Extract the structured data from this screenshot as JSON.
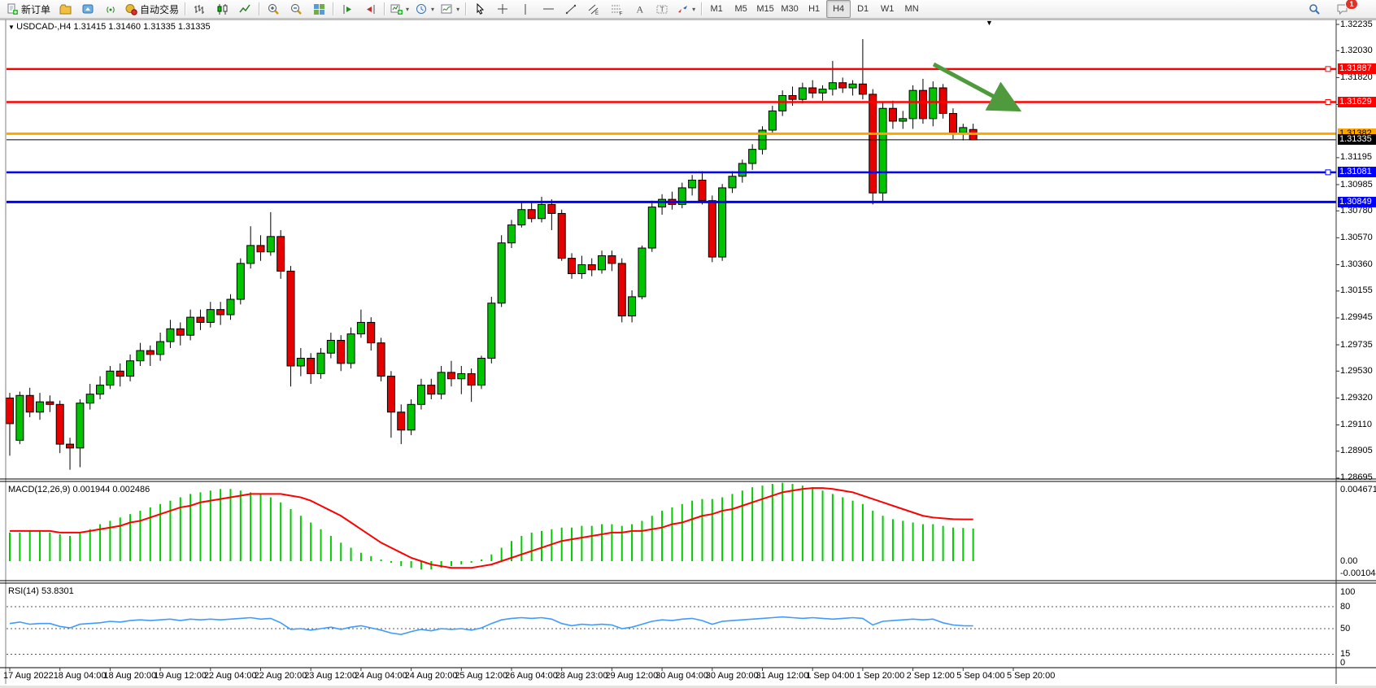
{
  "toolbar": {
    "new_order_label": "新订单",
    "auto_trading_label": "自动交易",
    "timeframes": [
      "M1",
      "M5",
      "M15",
      "M30",
      "H1",
      "H4",
      "D1",
      "W1",
      "MN"
    ],
    "active_timeframe": "H4",
    "notification_count": "1",
    "icon_buttons": [
      {
        "name": "new-order-button",
        "icon": "page-plus",
        "label": "新订单"
      },
      {
        "name": "charts-profile-button",
        "icon": "profile"
      },
      {
        "name": "publish-button",
        "icon": "publish"
      },
      {
        "name": "signals-button",
        "icon": "signal"
      },
      {
        "name": "auto-trading-button",
        "icon": "autotrade",
        "label": "自动交易"
      },
      {
        "sep": true
      },
      {
        "name": "bar-chart-button",
        "icon": "bars"
      },
      {
        "name": "candlestick-button",
        "icon": "candles"
      },
      {
        "name": "line-chart-button",
        "icon": "line-chart"
      },
      {
        "sep": true
      },
      {
        "name": "zoom-in-button",
        "icon": "zoom-in"
      },
      {
        "name": "zoom-out-button",
        "icon": "zoom-out"
      },
      {
        "name": "tile-windows-button",
        "icon": "tiles"
      },
      {
        "sep": true
      },
      {
        "name": "auto-scroll-button",
        "icon": "auto-scroll"
      },
      {
        "name": "chart-shift-button",
        "icon": "chart-shift"
      },
      {
        "sep": true
      },
      {
        "name": "new-chart-dropdown",
        "icon": "new-chart",
        "caret": true
      },
      {
        "name": "periods-dropdown",
        "icon": "clock",
        "caret": true
      },
      {
        "name": "indicators-dropdown",
        "icon": "indicators",
        "caret": true
      },
      {
        "sep": true
      },
      {
        "name": "cursor-button",
        "icon": "cursor"
      },
      {
        "name": "crosshair-button",
        "icon": "crosshair"
      },
      {
        "name": "vertical-line-button",
        "icon": "vline"
      },
      {
        "name": "horizontal-line-button",
        "icon": "hline"
      },
      {
        "name": "trendline-button",
        "icon": "trendline"
      },
      {
        "name": "equidistant-channel-button",
        "icon": "channel"
      },
      {
        "name": "fibonacci-button",
        "icon": "fibo"
      },
      {
        "name": "text-button",
        "icon": "text"
      },
      {
        "name": "text-label-button",
        "icon": "label"
      },
      {
        "name": "arrows-dropdown",
        "icon": "arrows",
        "caret": true
      },
      {
        "sep": true
      }
    ]
  },
  "chart": {
    "symbol_line": "USDCAD-,H4  1.31415 1.31460 1.31335 1.31335",
    "price_axis_labels": [
      "1.32235",
      "1.32030",
      "1.31820",
      "1.31610",
      "1.31195",
      "1.30985",
      "1.30780",
      "1.30570",
      "1.30360",
      "1.30155",
      "1.29945",
      "1.29735",
      "1.29530",
      "1.29320",
      "1.29110",
      "1.28905",
      "1.28695"
    ],
    "lines": [
      {
        "label": "1.31887",
        "price": 1.31887,
        "color": "#ff0000",
        "width": 2.5,
        "handle": true,
        "text": "#ffffff",
        "kind": "resistance-line"
      },
      {
        "label": "1.31629",
        "price": 1.31629,
        "color": "#ff0000",
        "width": 2.5,
        "handle": true,
        "text": "#ffffff",
        "kind": "resistance-line"
      },
      {
        "label": "1.31382",
        "price": 1.31382,
        "color": "#ffa500",
        "width": 3,
        "handle": false,
        "text": "#000000",
        "kind": "pivot-line"
      },
      {
        "label": "1.31335",
        "price": 1.31335,
        "color": "#000000",
        "width": 1,
        "handle": false,
        "text": "#ffffff",
        "kind": "current-price-line"
      },
      {
        "label": "1.31081",
        "price": 1.31081,
        "color": "#0000ff",
        "width": 2.5,
        "handle": true,
        "text": "#ffffff",
        "kind": "support-line"
      },
      {
        "label": "1.30849",
        "price": 1.30849,
        "color": "#0000ff",
        "width": 3,
        "handle": false,
        "text": "#ffffff",
        "kind": "support-line"
      }
    ],
    "time_axis": [
      "17 Aug 2022",
      "18 Aug 04:00",
      "18 Aug 20:00",
      "19 Aug 12:00",
      "22 Aug 04:00",
      "22 Aug 20:00",
      "23 Aug 12:00",
      "24 Aug 04:00",
      "24 Aug 20:00",
      "25 Aug 12:00",
      "26 Aug 04:00",
      "28 Aug 23:00",
      "29 Aug 12:00",
      "30 Aug 04:00",
      "30 Aug 20:00",
      "31 Aug 12:00",
      "1 Sep 04:00",
      "1 Sep 20:00",
      "2 Sep 12:00",
      "5 Sep 04:00",
      "5 Sep 20:00"
    ],
    "arrow_color": "#4e9a3c"
  },
  "macd": {
    "label": "MACD(12,26,9) 0.001944 0.002486",
    "axis_labels": [
      "0.004671",
      "0.00",
      "-0.001044"
    ],
    "hist_color": "#00cc00",
    "signal_color": "#ff0000"
  },
  "rsi": {
    "label": "RSI(14) 53.8301",
    "axis_labels": [
      "100",
      "80",
      "50",
      "15",
      "0"
    ],
    "levels": [
      80,
      50,
      15
    ],
    "line_color": "#3e9bff"
  },
  "colors": {
    "bull": "#00c400",
    "bear": "#e60000",
    "outline": "#000000"
  },
  "chart_data": {
    "type": "candlestick",
    "symbol": "USDCAD",
    "period": "H4",
    "ohlc_last": {
      "open": 1.31415,
      "high": 1.3146,
      "low": 1.31335,
      "close": 1.31335
    },
    "ylim": [
      1.28695,
      1.32235
    ],
    "candles": [
      [
        1.2932,
        1.2936,
        1.2887,
        1.2912
      ],
      [
        1.2899,
        1.2937,
        1.2896,
        1.2934
      ],
      [
        1.2934,
        1.294,
        1.2917,
        1.2921
      ],
      [
        1.2921,
        1.2936,
        1.2915,
        1.2929
      ],
      [
        1.2929,
        1.2934,
        1.2921,
        1.2927
      ],
      [
        1.2927,
        1.293,
        1.2889,
        1.2896
      ],
      [
        1.2896,
        1.2901,
        1.2876,
        1.2893
      ],
      [
        1.2893,
        1.2931,
        1.2878,
        1.2928
      ],
      [
        1.2928,
        1.2943,
        1.2923,
        1.2935
      ],
      [
        1.2935,
        1.2949,
        1.2931,
        1.2942
      ],
      [
        1.2942,
        1.2957,
        1.2939,
        1.2953
      ],
      [
        1.2953,
        1.2959,
        1.2941,
        1.2949
      ],
      [
        1.2949,
        1.2966,
        1.2945,
        1.2961
      ],
      [
        1.2961,
        1.2975,
        1.2957,
        1.2969
      ],
      [
        1.2969,
        1.2973,
        1.2957,
        1.2966
      ],
      [
        1.2966,
        1.2983,
        1.2961,
        1.2976
      ],
      [
        1.2976,
        1.2993,
        1.2971,
        1.2986
      ],
      [
        1.2986,
        1.2991,
        1.2973,
        1.2981
      ],
      [
        1.2981,
        1.3001,
        1.2977,
        1.2995
      ],
      [
        1.2995,
        1.3001,
        1.2985,
        1.2991
      ],
      [
        1.2991,
        1.3007,
        1.2987,
        1.3001
      ],
      [
        1.3001,
        1.3007,
        1.2989,
        1.2997
      ],
      [
        1.2997,
        1.3013,
        1.2993,
        1.3009
      ],
      [
        1.3009,
        1.3041,
        1.3005,
        1.3037
      ],
      [
        1.3037,
        1.3066,
        1.3033,
        1.3051
      ],
      [
        1.3051,
        1.3059,
        1.3039,
        1.3046
      ],
      [
        1.3046,
        1.3077,
        1.3043,
        1.3058
      ],
      [
        1.3058,
        1.3063,
        1.3025,
        1.3031
      ],
      [
        1.3031,
        1.3035,
        1.2941,
        1.2957
      ],
      [
        1.2957,
        1.2971,
        1.2949,
        1.2963
      ],
      [
        1.2963,
        1.2967,
        1.2943,
        1.2951
      ],
      [
        1.2951,
        1.2971,
        1.2947,
        1.2967
      ],
      [
        1.2967,
        1.2983,
        1.2963,
        1.2977
      ],
      [
        1.2977,
        1.2981,
        1.2953,
        1.2959
      ],
      [
        1.2959,
        1.2987,
        1.2955,
        1.2982
      ],
      [
        1.2982,
        1.3001,
        1.2979,
        1.2991
      ],
      [
        1.2991,
        1.2995,
        1.2969,
        1.2975
      ],
      [
        1.2975,
        1.2979,
        1.2945,
        1.2949
      ],
      [
        1.2949,
        1.2953,
        1.2901,
        1.2921
      ],
      [
        1.2921,
        1.2927,
        1.2896,
        1.2907
      ],
      [
        1.2907,
        1.2931,
        1.2903,
        1.2927
      ],
      [
        1.2927,
        1.2947,
        1.2923,
        1.2942
      ],
      [
        1.2942,
        1.2947,
        1.2931,
        1.2935
      ],
      [
        1.2935,
        1.2957,
        1.2931,
        1.2952
      ],
      [
        1.2952,
        1.2961,
        1.2941,
        1.2947
      ],
      [
        1.2947,
        1.2957,
        1.2935,
        1.2951
      ],
      [
        1.2951,
        1.2955,
        1.2929,
        1.2942
      ],
      [
        1.2942,
        1.2965,
        1.2939,
        1.2963
      ],
      [
        1.2963,
        1.3011,
        1.2959,
        1.3006
      ],
      [
        1.3006,
        1.3059,
        1.3003,
        1.3053
      ],
      [
        1.3053,
        1.3071,
        1.3049,
        1.3067
      ],
      [
        1.3067,
        1.3085,
        1.3065,
        1.3079
      ],
      [
        1.3079,
        1.3085,
        1.3069,
        1.3072
      ],
      [
        1.3072,
        1.3089,
        1.3069,
        1.3083
      ],
      [
        1.3083,
        1.3087,
        1.3063,
        1.3076
      ],
      [
        1.3076,
        1.3079,
        1.3039,
        1.3041
      ],
      [
        1.3041,
        1.3045,
        1.3025,
        1.3029
      ],
      [
        1.3029,
        1.3043,
        1.3025,
        1.3036
      ],
      [
        1.3036,
        1.3041,
        1.3027,
        1.3032
      ],
      [
        1.3032,
        1.3047,
        1.3029,
        1.3043
      ],
      [
        1.3043,
        1.3047,
        1.3031,
        1.3037
      ],
      [
        1.3037,
        1.3041,
        1.2991,
        1.2996
      ],
      [
        1.2996,
        1.3016,
        1.2991,
        1.3011
      ],
      [
        1.3011,
        1.3051,
        1.3009,
        1.3049
      ],
      [
        1.3049,
        1.3086,
        1.3046,
        1.3081
      ],
      [
        1.3081,
        1.3091,
        1.3075,
        1.3087
      ],
      [
        1.3087,
        1.3093,
        1.3079,
        1.3083
      ],
      [
        1.3083,
        1.31,
        1.308,
        1.3096
      ],
      [
        1.3096,
        1.3106,
        1.309,
        1.3102
      ],
      [
        1.3102,
        1.3109,
        1.3083,
        1.3086
      ],
      [
        1.3086,
        1.309,
        1.3038,
        1.3042
      ],
      [
        1.3042,
        1.3099,
        1.3039,
        1.3096
      ],
      [
        1.3096,
        1.3109,
        1.3092,
        1.3105
      ],
      [
        1.3105,
        1.3118,
        1.31,
        1.3115
      ],
      [
        1.3115,
        1.313,
        1.311,
        1.3126
      ],
      [
        1.3126,
        1.3144,
        1.3122,
        1.3141
      ],
      [
        1.3141,
        1.316,
        1.3138,
        1.3156
      ],
      [
        1.3156,
        1.3172,
        1.3152,
        1.3168
      ],
      [
        1.3168,
        1.3175,
        1.316,
        1.3165
      ],
      [
        1.3165,
        1.3178,
        1.3162,
        1.3174
      ],
      [
        1.3174,
        1.318,
        1.3166,
        1.317
      ],
      [
        1.317,
        1.3176,
        1.3164,
        1.3173
      ],
      [
        1.3173,
        1.3195,
        1.3168,
        1.3178
      ],
      [
        1.3178,
        1.3182,
        1.317,
        1.3174
      ],
      [
        1.3174,
        1.318,
        1.3168,
        1.3177
      ],
      [
        1.3177,
        1.3212,
        1.3165,
        1.3169
      ],
      [
        1.3169,
        1.3173,
        1.3083,
        1.3092
      ],
      [
        1.3092,
        1.3163,
        1.3085,
        1.3158
      ],
      [
        1.3158,
        1.3164,
        1.3142,
        1.3148
      ],
      [
        1.3148,
        1.3156,
        1.3142,
        1.315
      ],
      [
        1.315,
        1.3176,
        1.3142,
        1.3172
      ],
      [
        1.3172,
        1.3181,
        1.3146,
        1.315
      ],
      [
        1.315,
        1.3179,
        1.3144,
        1.3174
      ],
      [
        1.3174,
        1.3177,
        1.315,
        1.3154
      ],
      [
        1.3154,
        1.3158,
        1.3134,
        1.3139
      ],
      [
        1.3139,
        1.3146,
        1.3133,
        1.3143
      ],
      [
        1.31415,
        1.3146,
        1.31335,
        1.31335
      ]
    ],
    "macd_hist_1e4": [
      17,
      17,
      18,
      18,
      17,
      16,
      15,
      17,
      19,
      22,
      24,
      26,
      28,
      30,
      32,
      34,
      36,
      38,
      40,
      41,
      42,
      43,
      43,
      42,
      41,
      40,
      38,
      35,
      31,
      27,
      23,
      19,
      15,
      11,
      8,
      5,
      3,
      1,
      -1,
      -3,
      -4,
      -5,
      -5,
      -4,
      -3,
      -2,
      -1,
      1,
      4,
      8,
      12,
      15,
      17,
      18,
      19,
      20,
      20,
      21,
      21,
      22,
      22,
      21,
      22,
      24,
      27,
      30,
      32,
      34,
      36,
      37,
      37,
      38,
      40,
      42,
      44,
      45,
      46,
      46.7,
      46,
      45,
      44,
      42,
      40,
      38,
      36,
      34,
      30,
      27,
      25,
      24,
      23,
      22,
      22,
      21,
      20,
      19.8,
      19.44
    ],
    "macd_signal_1e4": [
      18,
      18,
      18,
      18,
      18,
      17,
      17,
      17,
      18,
      19,
      20,
      21,
      23,
      24,
      26,
      28,
      30,
      32,
      33,
      35,
      36,
      37,
      38,
      39,
      40,
      40,
      40,
      40,
      39,
      38,
      36,
      33,
      30,
      27,
      23,
      19,
      15,
      11,
      8,
      5,
      2,
      0,
      -2,
      -3,
      -4,
      -4,
      -4,
      -3,
      -2,
      0,
      2,
      4,
      6,
      8,
      10,
      12,
      13,
      14,
      15,
      16,
      17,
      17,
      18,
      18,
      19,
      20,
      22,
      23,
      25,
      27,
      28,
      30,
      31,
      33,
      35,
      37,
      39,
      41,
      42,
      43,
      43.5,
      43.5,
      43,
      42,
      41,
      39,
      37,
      35,
      33,
      31,
      29,
      27,
      26,
      25.5,
      25,
      24.9,
      24.86
    ],
    "rsi": [
      57,
      59,
      56,
      57,
      57,
      53,
      51,
      56,
      57,
      58,
      60,
      59,
      61,
      62,
      61,
      62,
      63,
      61,
      63,
      62,
      63,
      62,
      63,
      64,
      65,
      63,
      64,
      58,
      49,
      50,
      48,
      50,
      52,
      49,
      52,
      54,
      51,
      48,
      44,
      42,
      46,
      49,
      47,
      50,
      49,
      50,
      48,
      51,
      57,
      62,
      64,
      65,
      64,
      65,
      63,
      57,
      54,
      56,
      55,
      56,
      55,
      50,
      52,
      56,
      60,
      62,
      61,
      63,
      64,
      61,
      56,
      60,
      61,
      62,
      63,
      64,
      65,
      66,
      65,
      64,
      65,
      64,
      63,
      64,
      65,
      64,
      55,
      60,
      61,
      62,
      63,
      62,
      63,
      58,
      55,
      54,
      53.83
    ]
  }
}
